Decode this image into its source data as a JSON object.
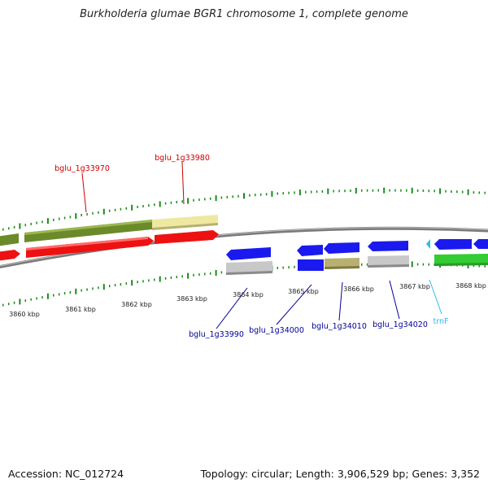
{
  "title": "Burkholderia glumae BGR1 chromosome 1, complete genome",
  "footer": {
    "accession": "Accession: NC_012724",
    "summary": "Topology: circular; Length: 3,906,529 bp; Genes: 3,352"
  },
  "colors": {
    "forward_cds_red": "#ee1111",
    "forward_gene_olive": "#6b8a2a",
    "forward_gene_pale": "#eee8a0",
    "reverse_cds_blue": "#1a1aee",
    "reverse_gene_gray": "#c8c8c8",
    "reverse_gene_olive": "#b8b070",
    "rna_green": "#33cc33",
    "trna_cyan": "#33bbee",
    "tick_green": "#1a8a1a",
    "label_red": "#cc0000",
    "label_navy": "#000099",
    "backbone": "#808080"
  },
  "scale": {
    "ticks": [
      {
        "label": "3860 kbp"
      },
      {
        "label": "3861 kbp"
      },
      {
        "label": "3862 kbp"
      },
      {
        "label": "3863 kbp"
      },
      {
        "label": "3864 kbp"
      },
      {
        "label": "3865 kbp"
      },
      {
        "label": "3866 kbp"
      },
      {
        "label": "3867 kbp"
      },
      {
        "label": "3868 kbp"
      }
    ]
  },
  "features": {
    "forward_labels": [
      {
        "id": "bglu_1g33970"
      },
      {
        "id": "bglu_1g33980"
      }
    ],
    "reverse_labels": [
      {
        "id": "bglu_1g33990"
      },
      {
        "id": "bglu_1g34000"
      },
      {
        "id": "bglu_1g34010"
      },
      {
        "id": "bglu_1g34020"
      },
      {
        "id": "trnF"
      }
    ]
  }
}
